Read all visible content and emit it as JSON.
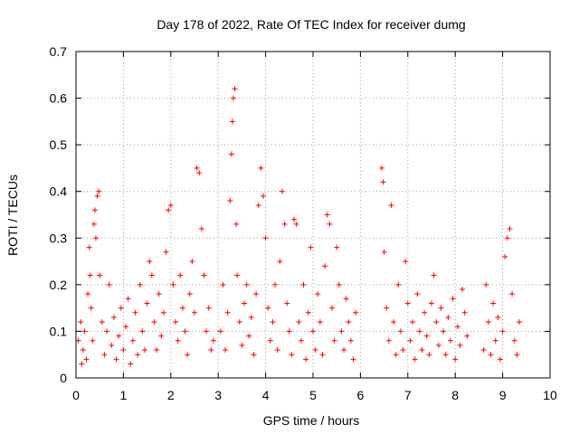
{
  "chart_data": {
    "type": "scatter",
    "title": "Day 178 of 2022, Rate Of TEC Index for receiver dumg",
    "xlabel": "GPS time / hours",
    "ylabel": "ROTI / TECUs",
    "xlim": [
      0,
      10
    ],
    "ylim": [
      0,
      0.7
    ],
    "xticks": [
      0,
      1,
      2,
      3,
      4,
      5,
      6,
      7,
      8,
      9,
      10
    ],
    "yticks": [
      0,
      0.1,
      0.2,
      0.3,
      0.4,
      0.5,
      0.6,
      0.7
    ],
    "grid": true,
    "legend": "none",
    "marker": "plus",
    "color": "#ff0000",
    "series": [
      {
        "values": [
          [
            0.05,
            0.08
          ],
          [
            0.1,
            0.12
          ],
          [
            0.12,
            0.03
          ],
          [
            0.15,
            0.06
          ],
          [
            0.18,
            0.1
          ],
          [
            0.22,
            0.04
          ],
          [
            0.25,
            0.18
          ],
          [
            0.28,
            0.28
          ],
          [
            0.3,
            0.22
          ],
          [
            0.32,
            0.15
          ],
          [
            0.35,
            0.08
          ],
          [
            0.38,
            0.33
          ],
          [
            0.4,
            0.36
          ],
          [
            0.42,
            0.3
          ],
          [
            0.45,
            0.39
          ],
          [
            0.48,
            0.4
          ],
          [
            0.5,
            0.22
          ],
          [
            0.55,
            0.12
          ],
          [
            0.6,
            0.05
          ],
          [
            0.65,
            0.1
          ],
          [
            0.7,
            0.2
          ],
          [
            0.75,
            0.07
          ],
          [
            0.8,
            0.13
          ],
          [
            0.85,
            0.04
          ],
          [
            0.9,
            0.09
          ],
          [
            0.95,
            0.15
          ],
          [
            1.0,
            0.06
          ],
          [
            1.05,
            0.11
          ],
          [
            1.1,
            0.17
          ],
          [
            1.15,
            0.03
          ],
          [
            1.2,
            0.08
          ],
          [
            1.25,
            0.14
          ],
          [
            1.3,
            0.05
          ],
          [
            1.35,
            0.2
          ],
          [
            1.4,
            0.1
          ],
          [
            1.45,
            0.06
          ],
          [
            1.5,
            0.16
          ],
          [
            1.55,
            0.25
          ],
          [
            1.6,
            0.22
          ],
          [
            1.65,
            0.12
          ],
          [
            1.7,
            0.06
          ],
          [
            1.75,
            0.18
          ],
          [
            1.8,
            0.09
          ],
          [
            1.85,
            0.14
          ],
          [
            1.9,
            0.27
          ],
          [
            1.95,
            0.36
          ],
          [
            2.0,
            0.37
          ],
          [
            2.05,
            0.2
          ],
          [
            2.1,
            0.12
          ],
          [
            2.15,
            0.08
          ],
          [
            2.2,
            0.22
          ],
          [
            2.25,
            0.15
          ],
          [
            2.3,
            0.1
          ],
          [
            2.35,
            0.05
          ],
          [
            2.4,
            0.18
          ],
          [
            2.45,
            0.25
          ],
          [
            2.5,
            0.14
          ],
          [
            2.55,
            0.45
          ],
          [
            2.6,
            0.44
          ],
          [
            2.65,
            0.32
          ],
          [
            2.7,
            0.22
          ],
          [
            2.75,
            0.1
          ],
          [
            2.8,
            0.15
          ],
          [
            2.85,
            0.06
          ],
          [
            2.9,
            0.08
          ],
          [
            3.05,
            0.1
          ],
          [
            3.1,
            0.2
          ],
          [
            3.15,
            0.06
          ],
          [
            3.2,
            0.14
          ],
          [
            3.25,
            0.38
          ],
          [
            3.28,
            0.48
          ],
          [
            3.3,
            0.55
          ],
          [
            3.32,
            0.6
          ],
          [
            3.35,
            0.62
          ],
          [
            3.38,
            0.33
          ],
          [
            3.4,
            0.22
          ],
          [
            3.45,
            0.12
          ],
          [
            3.5,
            0.07
          ],
          [
            3.55,
            0.16
          ],
          [
            3.6,
            0.2
          ],
          [
            3.65,
            0.09
          ],
          [
            3.7,
            0.13
          ],
          [
            3.75,
            0.05
          ],
          [
            3.8,
            0.18
          ],
          [
            3.85,
            0.37
          ],
          [
            3.9,
            0.45
          ],
          [
            3.95,
            0.39
          ],
          [
            4.0,
            0.3
          ],
          [
            4.05,
            0.15
          ],
          [
            4.1,
            0.08
          ],
          [
            4.15,
            0.12
          ],
          [
            4.2,
            0.2
          ],
          [
            4.25,
            0.06
          ],
          [
            4.3,
            0.25
          ],
          [
            4.35,
            0.4
          ],
          [
            4.4,
            0.33
          ],
          [
            4.45,
            0.16
          ],
          [
            4.5,
            0.1
          ],
          [
            4.55,
            0.05
          ],
          [
            4.6,
            0.34
          ],
          [
            4.65,
            0.33
          ],
          [
            4.7,
            0.12
          ],
          [
            4.75,
            0.08
          ],
          [
            4.8,
            0.2
          ],
          [
            4.85,
            0.04
          ],
          [
            4.9,
            0.14
          ],
          [
            4.95,
            0.28
          ],
          [
            5.0,
            0.1
          ],
          [
            5.05,
            0.06
          ],
          [
            5.1,
            0.18
          ],
          [
            5.15,
            0.12
          ],
          [
            5.2,
            0.05
          ],
          [
            5.25,
            0.24
          ],
          [
            5.3,
            0.35
          ],
          [
            5.35,
            0.33
          ],
          [
            5.4,
            0.15
          ],
          [
            5.45,
            0.08
          ],
          [
            5.5,
            0.28
          ],
          [
            5.55,
            0.2
          ],
          [
            5.6,
            0.1
          ],
          [
            5.65,
            0.06
          ],
          [
            5.7,
            0.17
          ],
          [
            5.75,
            0.12
          ],
          [
            5.8,
            0.08
          ],
          [
            5.85,
            0.04
          ],
          [
            5.9,
            0.14
          ],
          [
            6.45,
            0.45
          ],
          [
            6.48,
            0.42
          ],
          [
            6.5,
            0.27
          ],
          [
            6.55,
            0.15
          ],
          [
            6.6,
            0.08
          ],
          [
            6.65,
            0.37
          ],
          [
            6.7,
            0.12
          ],
          [
            6.75,
            0.05
          ],
          [
            6.8,
            0.2
          ],
          [
            6.85,
            0.1
          ],
          [
            6.9,
            0.06
          ],
          [
            6.95,
            0.25
          ],
          [
            7.0,
            0.16
          ],
          [
            7.05,
            0.08
          ],
          [
            7.1,
            0.12
          ],
          [
            7.15,
            0.04
          ],
          [
            7.2,
            0.18
          ],
          [
            7.25,
            0.1
          ],
          [
            7.3,
            0.06
          ],
          [
            7.35,
            0.14
          ],
          [
            7.4,
            0.09
          ],
          [
            7.45,
            0.05
          ],
          [
            7.5,
            0.16
          ],
          [
            7.55,
            0.22
          ],
          [
            7.6,
            0.12
          ],
          [
            7.65,
            0.07
          ],
          [
            7.7,
            0.15
          ],
          [
            7.75,
            0.1
          ],
          [
            7.8,
            0.05
          ],
          [
            7.85,
            0.13
          ],
          [
            7.9,
            0.08
          ],
          [
            7.95,
            0.17
          ],
          [
            8.0,
            0.04
          ],
          [
            8.05,
            0.11
          ],
          [
            8.1,
            0.07
          ],
          [
            8.15,
            0.19
          ],
          [
            8.2,
            0.14
          ],
          [
            8.25,
            0.09
          ],
          [
            8.6,
            0.06
          ],
          [
            8.65,
            0.2
          ],
          [
            8.7,
            0.12
          ],
          [
            8.75,
            0.05
          ],
          [
            8.8,
            0.16
          ],
          [
            8.85,
            0.08
          ],
          [
            8.9,
            0.13
          ],
          [
            8.95,
            0.04
          ],
          [
            9.0,
            0.1
          ],
          [
            9.05,
            0.26
          ],
          [
            9.1,
            0.3
          ],
          [
            9.15,
            0.32
          ],
          [
            9.2,
            0.18
          ],
          [
            9.25,
            0.08
          ],
          [
            9.3,
            0.05
          ],
          [
            9.35,
            0.12
          ]
        ]
      }
    ]
  }
}
